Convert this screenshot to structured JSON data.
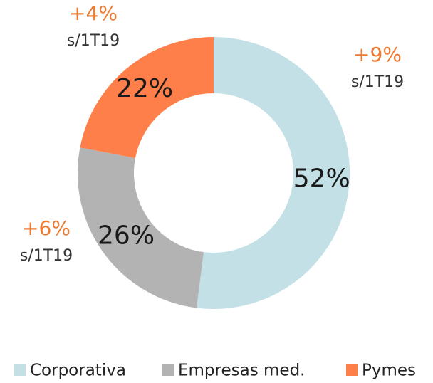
{
  "chart_data": {
    "type": "pie",
    "categories": [
      "Corporativa",
      "Empresas med.",
      "Pymes"
    ],
    "values": [
      52,
      26,
      22
    ],
    "value_labels": [
      "52%",
      "26%",
      "22%"
    ],
    "colors": [
      "#c2e0e5",
      "#b3b3b3",
      "#ff7f4a"
    ],
    "annotations": [
      {
        "text": "+9%",
        "note": "s/1T19"
      },
      {
        "text": "+6%",
        "note": "s/1T19"
      },
      {
        "text": "+4%",
        "note": "s/1T19"
      }
    ],
    "legend": "bottom"
  }
}
